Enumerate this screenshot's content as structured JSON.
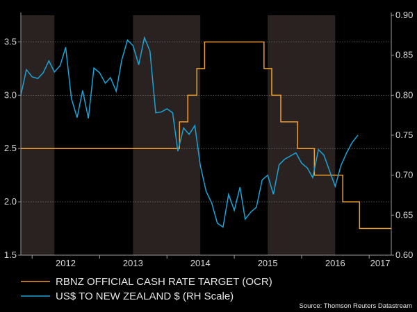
{
  "chart_data": {
    "type": "line",
    "title": "",
    "source": "Source: Thomson Reuters Datastream",
    "x_tick_labels": [
      "2012",
      "2013",
      "2014",
      "2015",
      "2016",
      "2017"
    ],
    "x_range": [
      "2011-11-01",
      "2017-05-01"
    ],
    "left_axis": {
      "ylim": [
        1.5,
        3.75
      ],
      "ticks": [
        "1.5",
        "2.0",
        "2.5",
        "3.0",
        "3.5"
      ]
    },
    "right_axis": {
      "ylim": [
        0.6,
        0.9
      ],
      "ticks": [
        "0.60",
        "0.65",
        "0.70",
        "0.75",
        "0.80",
        "0.85",
        "0.90"
      ]
    },
    "grid": true,
    "shaded_periods": [
      {
        "start": "2011-11-01",
        "end": "2012-05-01"
      },
      {
        "start": "2013-07-01",
        "end": "2014-07-01"
      },
      {
        "start": "2015-07-01",
        "end": "2016-07-01"
      }
    ],
    "legend": {
      "position": "bottom-left"
    },
    "series": [
      {
        "name": "RBNZ OFFICIAL CASH RATE TARGET (OCR)",
        "axis": "left",
        "color": "#f0a030",
        "step": true,
        "points": [
          [
            "2011-11-01",
            2.5
          ],
          [
            "2014-03-10",
            2.75
          ],
          [
            "2014-04-24",
            3.0
          ],
          [
            "2014-06-12",
            3.25
          ],
          [
            "2014-07-24",
            3.5
          ],
          [
            "2015-06-11",
            3.25
          ],
          [
            "2015-07-23",
            3.0
          ],
          [
            "2015-09-10",
            2.75
          ],
          [
            "2015-12-10",
            2.5
          ],
          [
            "2016-03-10",
            2.25
          ],
          [
            "2016-08-11",
            2.0
          ],
          [
            "2016-11-10",
            1.75
          ],
          [
            "2017-05-01",
            1.75
          ]
        ]
      },
      {
        "name": "US$ TO NEW ZEALAND $ (RH Scale)",
        "axis": "right",
        "color": "#1ba3d6",
        "step": false,
        "points": [
          [
            "2011-11-01",
            0.8
          ],
          [
            "2011-12-01",
            0.832
          ],
          [
            "2012-01-01",
            0.823
          ],
          [
            "2012-02-01",
            0.821
          ],
          [
            "2012-03-01",
            0.828
          ],
          [
            "2012-04-01",
            0.843
          ],
          [
            "2012-05-01",
            0.829
          ],
          [
            "2012-06-01",
            0.837
          ],
          [
            "2012-07-01",
            0.86
          ],
          [
            "2012-08-01",
            0.796
          ],
          [
            "2012-09-01",
            0.772
          ],
          [
            "2012-10-01",
            0.806
          ],
          [
            "2012-11-01",
            0.771
          ],
          [
            "2012-12-01",
            0.834
          ],
          [
            "2013-01-01",
            0.828
          ],
          [
            "2013-02-01",
            0.815
          ],
          [
            "2013-03-01",
            0.822
          ],
          [
            "2013-04-01",
            0.805
          ],
          [
            "2013-05-01",
            0.844
          ],
          [
            "2013-06-01",
            0.869
          ],
          [
            "2013-07-01",
            0.862
          ],
          [
            "2013-08-01",
            0.838
          ],
          [
            "2013-09-01",
            0.872
          ],
          [
            "2013-10-01",
            0.855
          ],
          [
            "2013-11-01",
            0.778
          ],
          [
            "2013-12-01",
            0.779
          ],
          [
            "2014-01-01",
            0.783
          ],
          [
            "2014-02-01",
            0.778
          ],
          [
            "2014-03-01",
            0.73
          ],
          [
            "2014-04-01",
            0.759
          ],
          [
            "2014-05-01",
            0.751
          ],
          [
            "2014-06-01",
            0.762
          ],
          [
            "2014-07-01",
            0.712
          ],
          [
            "2014-08-01",
            0.68
          ],
          [
            "2014-09-01",
            0.665
          ],
          [
            "2014-10-01",
            0.64
          ],
          [
            "2014-11-01",
            0.635
          ],
          [
            "2014-12-01",
            0.676
          ],
          [
            "2015-01-01",
            0.656
          ],
          [
            "2015-02-01",
            0.685
          ],
          [
            "2015-03-01",
            0.645
          ],
          [
            "2015-04-01",
            0.654
          ],
          [
            "2015-05-01",
            0.66
          ],
          [
            "2015-06-01",
            0.694
          ],
          [
            "2015-07-01",
            0.7
          ],
          [
            "2015-08-01",
            0.676
          ],
          [
            "2015-09-01",
            0.713
          ],
          [
            "2015-10-01",
            0.72
          ],
          [
            "2015-11-01",
            0.724
          ],
          [
            "2015-12-01",
            0.728
          ],
          [
            "2016-01-01",
            0.715
          ],
          [
            "2016-02-01",
            0.709
          ],
          [
            "2016-03-01",
            0.697
          ],
          [
            "2016-04-01",
            0.732
          ],
          [
            "2016-05-01",
            0.725
          ],
          [
            "2016-06-01",
            0.705
          ],
          [
            "2016-07-01",
            0.686
          ],
          [
            "2016-08-01",
            0.712
          ],
          [
            "2016-09-01",
            0.728
          ],
          [
            "2016-10-01",
            0.741
          ],
          [
            "2016-11-01",
            0.75
          ]
        ]
      }
    ]
  }
}
